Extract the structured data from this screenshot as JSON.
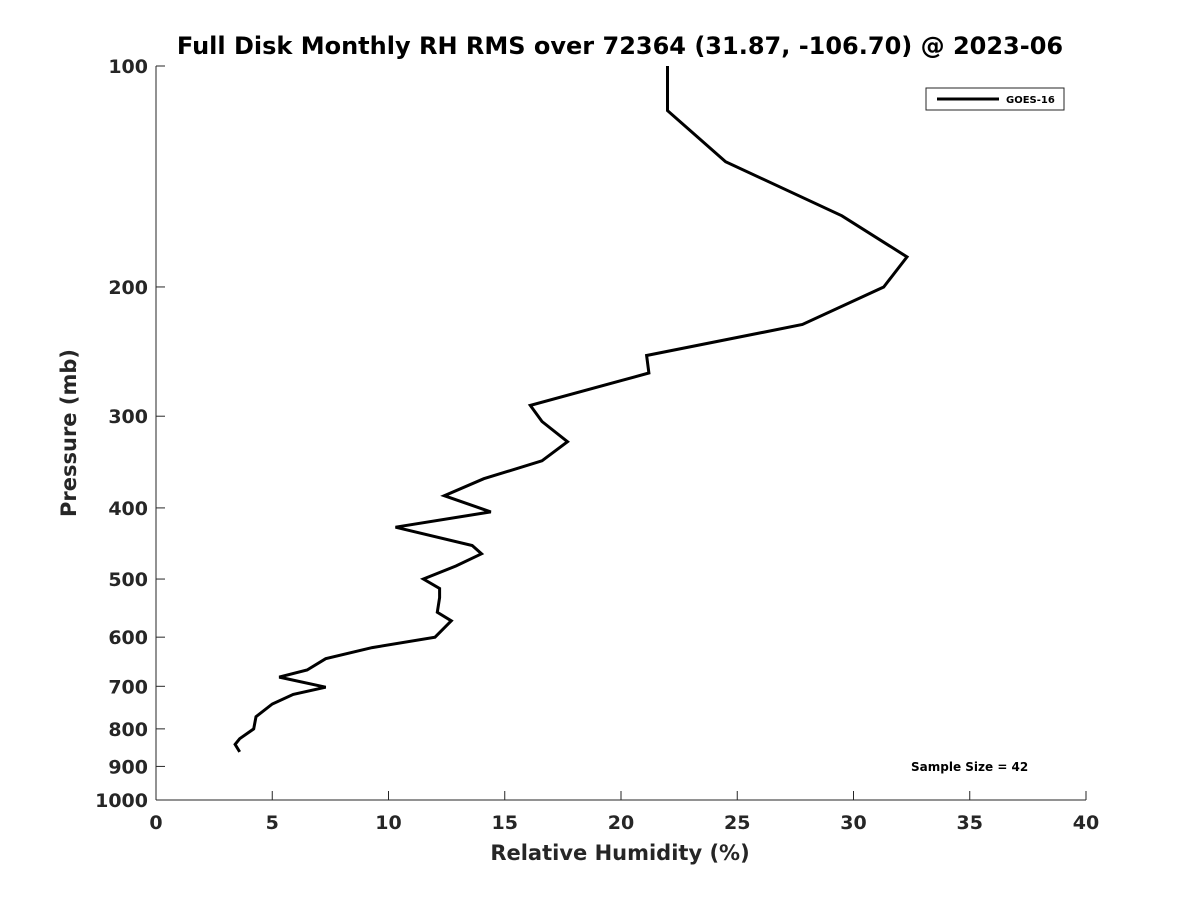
{
  "chart_data": {
    "type": "line",
    "title": "Full Disk Monthly RH RMS over 72364 (31.87, -106.70) @ 2023-06",
    "xlabel": "Relative Humidity (%)",
    "ylabel": "Pressure (mb)",
    "xlim": [
      0,
      40
    ],
    "ylim": [
      100,
      1000
    ],
    "y_scale": "log",
    "y_reversed": true,
    "x_ticks": [
      "0",
      "5",
      "10",
      "15",
      "20",
      "25",
      "30",
      "35",
      "40"
    ],
    "y_ticks": [
      "100",
      "200",
      "300",
      "400",
      "500",
      "600",
      "700",
      "800",
      "900",
      "1000"
    ],
    "grid": false,
    "legend_position": "top-right",
    "series": [
      {
        "name": "GOES-16",
        "color": "#000000",
        "x": [
          22.0,
          22.0,
          24.5,
          29.5,
          32.3,
          31.3,
          27.8,
          21.1,
          21.2,
          16.1,
          16.6,
          17.7,
          16.6,
          14.1,
          12.4,
          14.4,
          10.3,
          13.6,
          14.0,
          12.9,
          11.5,
          12.2,
          12.2,
          12.1,
          12.7,
          12.0,
          9.3,
          7.3,
          6.5,
          5.3,
          7.3,
          5.9,
          5.0,
          4.3,
          4.2,
          3.6,
          3.4,
          3.6
        ],
        "y": [
          100,
          115,
          135,
          160,
          182,
          200,
          225,
          248,
          262,
          290,
          305,
          325,
          345,
          365,
          385,
          405,
          425,
          450,
          462,
          480,
          500,
          515,
          530,
          555,
          570,
          600,
          620,
          642,
          665,
          680,
          702,
          718,
          740,
          770,
          800,
          825,
          840,
          860
        ]
      }
    ],
    "annotations": [
      "Sample Size = 42"
    ]
  }
}
